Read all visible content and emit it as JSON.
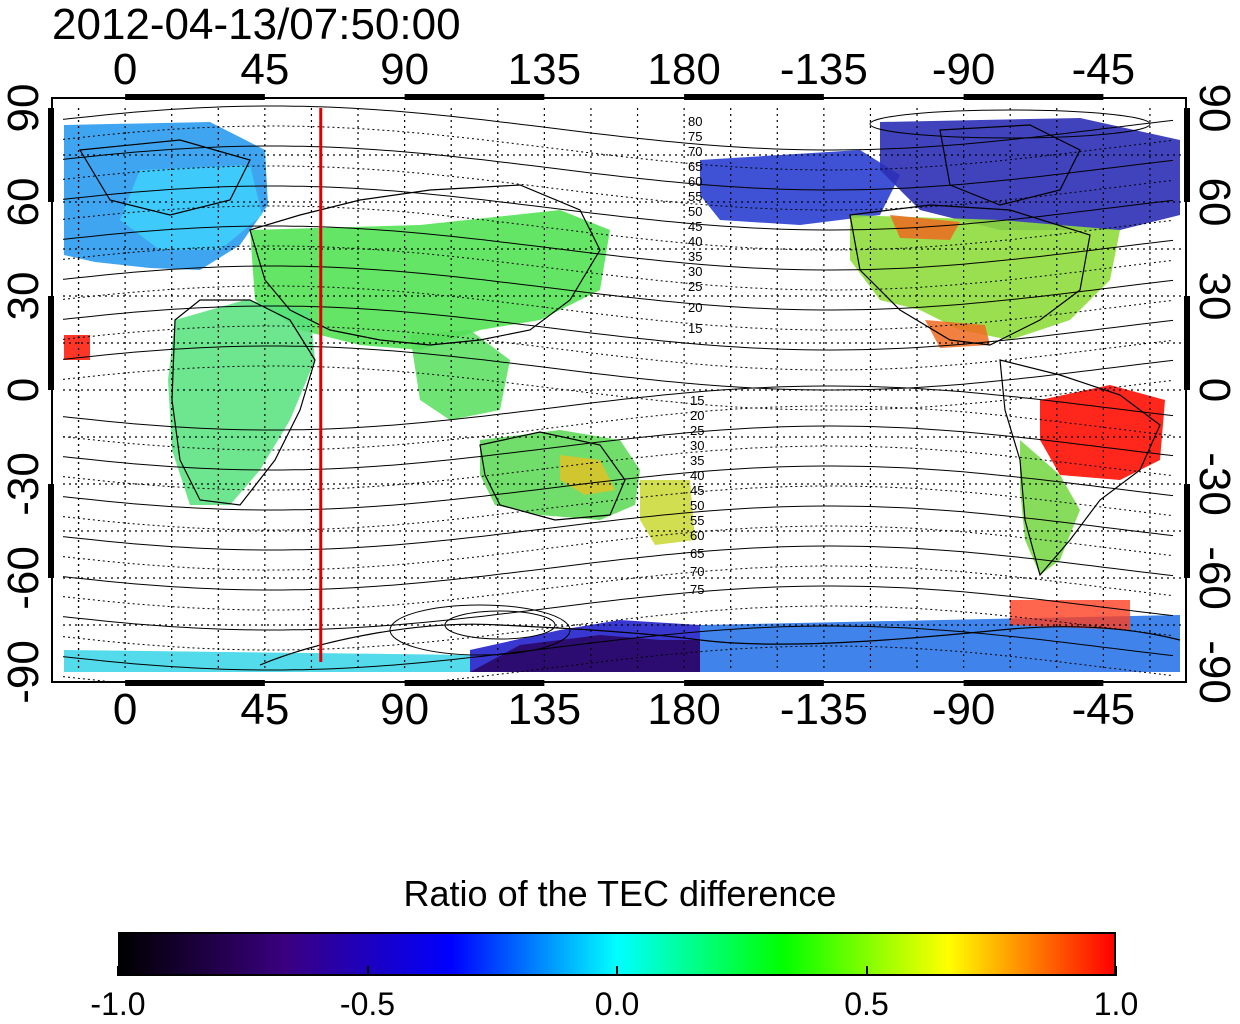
{
  "title": "2012-04-13/07:50:00",
  "x_tick_labels": [
    "0",
    "45",
    "90",
    "135",
    "180",
    "-135",
    "-90",
    "-45"
  ],
  "y_tick_labels": [
    "90",
    "60",
    "30",
    "0",
    "-30",
    "-60",
    "-90"
  ],
  "contour_labels_north": [
    "80",
    "75",
    "70",
    "65",
    "60",
    "55",
    "50",
    "45",
    "40",
    "35",
    "30",
    "25",
    "20",
    "15"
  ],
  "contour_labels_south": [
    "15",
    "20",
    "25",
    "30",
    "35",
    "40",
    "45",
    "50",
    "55",
    "60",
    "65",
    "70",
    "75"
  ],
  "marker_line_longitude": 63,
  "colorbar": {
    "title": "Ratio of the TEC difference",
    "tick_labels": [
      "-1.0",
      "-0.5",
      "0.0",
      "0.5",
      "1.0"
    ],
    "range": [
      -1.0,
      1.0
    ],
    "colors": [
      "#000000",
      "#3a0080",
      "#0000ff",
      "#00ffff",
      "#00ff00",
      "#ffff00",
      "#ff0000"
    ]
  },
  "colors": {
    "marker_line": "#dd0000",
    "coastline": "#000000",
    "grid": "#000000"
  }
}
